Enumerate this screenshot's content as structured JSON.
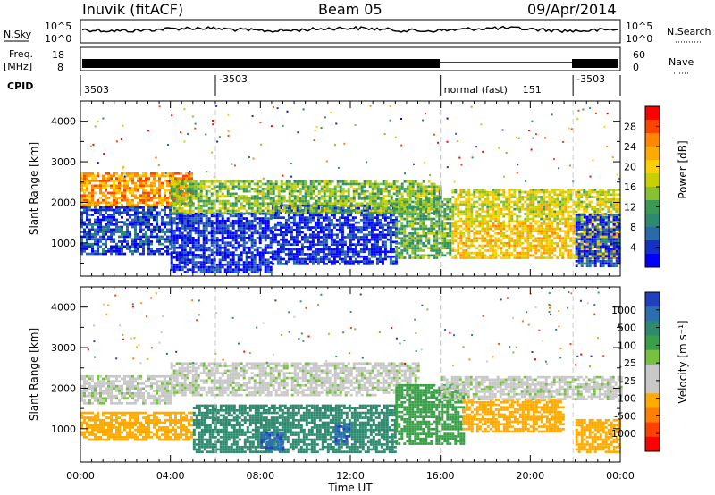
{
  "header": {
    "site": "Inuvik (fitACF)",
    "beam": "Beam 05",
    "date": "09/Apr/2014"
  },
  "strips": {
    "nsky_label": "N.Sky",
    "nsearch_label": "N.Search",
    "noise_ticks": [
      "10^5",
      "10^0"
    ],
    "freq_label": "Freq.",
    "freq_unit": "[MHz]",
    "freq_ticks": [
      "18",
      "8"
    ],
    "nave_label": "Nave",
    "nave_ticks": [
      "60",
      "0"
    ],
    "cpid_label": "CPID",
    "cpid_segments": [
      {
        "label": "3503",
        "from_hour": 0
      },
      {
        "label": "-3503",
        "from_hour": 6
      },
      {
        "label": "normal (fast)",
        "from_hour": 16
      },
      {
        "label": "151",
        "from_hour": 19.5
      },
      {
        "label": "-3503",
        "from_hour": 21.9
      }
    ]
  },
  "chart_data": [
    {
      "type": "heatmap",
      "title": "",
      "xlabel": "Time UT",
      "ylabel": "Slant Range [km]",
      "xlim_hours": [
        0,
        24
      ],
      "ylim": [
        180,
        4500
      ],
      "x_ticks": [
        "00:00",
        "04:00",
        "08:00",
        "12:00",
        "16:00",
        "20:00",
        "00:00"
      ],
      "y_ticks": [
        1000,
        2000,
        3000,
        4000
      ],
      "colorbar": {
        "label": "Power [dB]",
        "ticks": [
          "28",
          "24",
          "20",
          "16",
          "12",
          "8",
          "4"
        ],
        "colors": [
          "#ff0000",
          "#ff4400",
          "#ff8800",
          "#ffaa00",
          "#ffd000",
          "#c8d000",
          "#88c030",
          "#3a9a55",
          "#2e8a6e",
          "#2a6aa8",
          "#1530c8",
          "#0000ff"
        ]
      },
      "bands": [
        {
          "t0": 0.0,
          "t1": 4.0,
          "r0": 700,
          "r1": 1900,
          "level": 0.85
        },
        {
          "t0": 0.0,
          "t1": 5.0,
          "r0": 1900,
          "r1": 2700,
          "level": 0.25
        },
        {
          "t0": 4.0,
          "t1": 8.5,
          "r0": 250,
          "r1": 1700,
          "level": 0.9
        },
        {
          "t0": 8.5,
          "t1": 14.0,
          "r0": 450,
          "r1": 1900,
          "level": 0.9
        },
        {
          "t0": 4.0,
          "t1": 16.0,
          "r0": 1700,
          "r1": 2500,
          "level": 0.55
        },
        {
          "t0": 14.0,
          "t1": 16.5,
          "r0": 600,
          "r1": 2100,
          "level": 0.6
        },
        {
          "t0": 16.5,
          "t1": 24.0,
          "r0": 1500,
          "r1": 2300,
          "level": 0.45
        },
        {
          "t0": 16.5,
          "t1": 24.0,
          "r0": 600,
          "r1": 1500,
          "level": 0.35
        },
        {
          "t0": 22.0,
          "t1": 24.0,
          "r0": 400,
          "r1": 1700,
          "level": 0.85
        }
      ]
    },
    {
      "type": "heatmap",
      "title": "",
      "xlabel": "Time UT",
      "ylabel": "Slant Range [km]",
      "xlim_hours": [
        0,
        24
      ],
      "ylim": [
        180,
        4500
      ],
      "x_ticks": [
        "00:00",
        "04:00",
        "08:00",
        "12:00",
        "16:00",
        "20:00",
        "00:00"
      ],
      "y_ticks": [
        1000,
        2000,
        3000,
        4000
      ],
      "colorbar": {
        "label": "Velocity [m s⁻¹]",
        "ticks": [
          "1000",
          "500",
          "100",
          "25",
          "-25",
          "-100",
          "-500",
          "-1000"
        ],
        "colors": [
          "#2040c0",
          "#2a70b0",
          "#2e8a6e",
          "#3aa048",
          "#78c040",
          "#c8c8c8",
          "#c8c8c8",
          "#ffaa00",
          "#ff8000",
          "#ff4000",
          "#ff0000"
        ]
      },
      "bands": [
        {
          "t0": 0.0,
          "t1": 4.0,
          "r0": 1600,
          "r1": 2300,
          "vel": -10
        },
        {
          "t0": 0.0,
          "t1": 5.0,
          "r0": 700,
          "r1": 1400,
          "vel": -200
        },
        {
          "t0": 4.0,
          "t1": 15.0,
          "r0": 1800,
          "r1": 2600,
          "vel": -10
        },
        {
          "t0": 5.0,
          "t1": 14.0,
          "r0": 400,
          "r1": 1600,
          "vel": 150
        },
        {
          "t0": 8.0,
          "t1": 9.0,
          "r0": 450,
          "r1": 900,
          "vel": 900
        },
        {
          "t0": 11.3,
          "t1": 12.0,
          "r0": 600,
          "r1": 1100,
          "vel": 900
        },
        {
          "t0": 14.0,
          "t1": 17.0,
          "r0": 600,
          "r1": 2100,
          "vel": 60
        },
        {
          "t0": 17.0,
          "t1": 21.5,
          "r0": 900,
          "r1": 1700,
          "vel": -300
        },
        {
          "t0": 16.0,
          "t1": 24.0,
          "r0": 1700,
          "r1": 2300,
          "vel": -10
        },
        {
          "t0": 22.0,
          "t1": 24.0,
          "r0": 400,
          "r1": 1200,
          "vel": -300
        }
      ]
    }
  ],
  "colors": {
    "axis": "#000000",
    "dashed_marker": "#c8c8c8"
  }
}
